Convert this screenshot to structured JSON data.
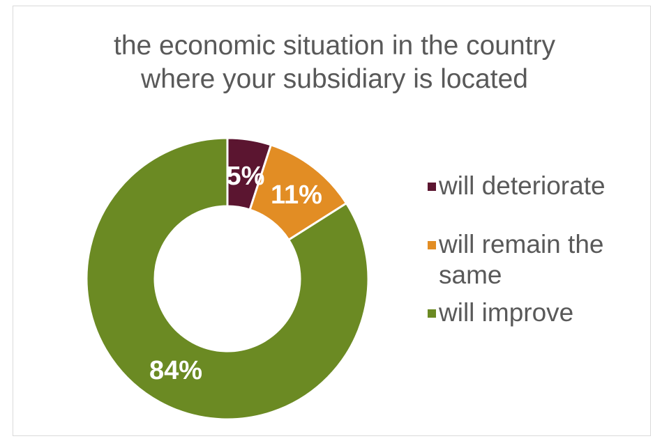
{
  "chart_data": {
    "type": "pie",
    "subtype": "donut",
    "title_lines": [
      "the economic situation in the country",
      "where your subsidiary is located"
    ],
    "slices": [
      {
        "label": "will deteriorate",
        "value": 5,
        "display": "5%",
        "color": "#5b1530"
      },
      {
        "label": "will remain the same",
        "value": 11,
        "display": "11%",
        "color": "#e28d24"
      },
      {
        "label": "will improve",
        "value": 84,
        "display": "84%",
        "color": "#6b8a23"
      }
    ],
    "legend_position": "right",
    "legend_lines": [
      [
        "will deteriorate"
      ],
      [
        "will remain the",
        "same"
      ],
      [
        "will improve"
      ]
    ]
  }
}
